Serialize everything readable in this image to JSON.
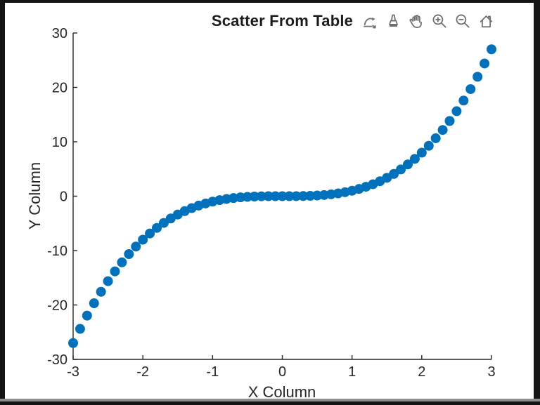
{
  "window": {
    "background_color": "#141414",
    "canvas_color": "#ffffff",
    "bottom_border_color": "#8e8e8e"
  },
  "toolbar": {
    "buttons": [
      {
        "name": "export",
        "icon": "export-icon"
      },
      {
        "name": "brush",
        "icon": "brush-icon"
      },
      {
        "name": "pan",
        "icon": "pan-icon"
      },
      {
        "name": "zoom-in",
        "icon": "zoom-in-icon"
      },
      {
        "name": "zoom-out",
        "icon": "zoom-out-icon"
      },
      {
        "name": "restore-view",
        "icon": "home-icon"
      }
    ]
  },
  "chart_data": {
    "type": "scatter",
    "title": "Scatter From Table",
    "xlabel": "X Column",
    "ylabel": "Y Column",
    "xlim": [
      -3,
      3
    ],
    "ylim": [
      -30,
      30
    ],
    "xticks": [
      -3,
      -2,
      -1,
      0,
      1,
      2,
      3
    ],
    "yticks": [
      -30,
      -20,
      -10,
      0,
      10,
      20,
      30
    ],
    "grid": false,
    "legend": null,
    "marker_color": "#0072BD",
    "marker_radius_px": 7,
    "x": [
      -3,
      -2.9,
      -2.8,
      -2.7,
      -2.6,
      -2.5,
      -2.4,
      -2.3,
      -2.2,
      -2.1,
      -2,
      -1.9,
      -1.8,
      -1.7,
      -1.6,
      -1.5,
      -1.4,
      -1.3,
      -1.2,
      -1.1,
      -1,
      -0.9,
      -0.8,
      -0.7,
      -0.6,
      -0.5,
      -0.4,
      -0.3,
      -0.2,
      -0.1,
      0,
      0.1,
      0.2,
      0.3,
      0.4,
      0.5,
      0.6,
      0.7,
      0.8,
      0.9,
      1,
      1.1,
      1.2,
      1.3,
      1.4,
      1.5,
      1.6,
      1.7,
      1.8,
      1.9,
      2,
      2.1,
      2.2,
      2.3,
      2.4,
      2.5,
      2.6,
      2.7,
      2.8,
      2.9,
      3
    ],
    "y": [
      -27,
      -24.389,
      -21.952,
      -19.683,
      -17.576,
      -15.625,
      -13.824,
      -12.167,
      -10.648,
      -9.261,
      -8,
      -6.859,
      -5.832,
      -4.913,
      -4.096,
      -3.375,
      -2.744,
      -2.197,
      -1.728,
      -1.331,
      -1,
      -0.729,
      -0.512,
      -0.343,
      -0.216,
      -0.125,
      -0.064,
      -0.027,
      -0.008,
      -0.001,
      0,
      0.001,
      0.008,
      0.027,
      0.064,
      0.125,
      0.216,
      0.343,
      0.512,
      0.729,
      1,
      1.331,
      1.728,
      2.197,
      2.744,
      3.375,
      4.096,
      4.913,
      5.832,
      6.859,
      8,
      9.261,
      10.648,
      12.167,
      13.824,
      15.625,
      17.576,
      19.683,
      21.952,
      24.389,
      27
    ]
  }
}
